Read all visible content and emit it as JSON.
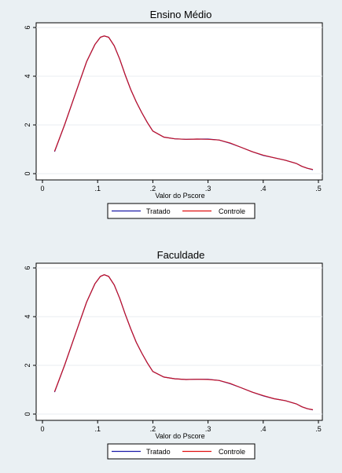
{
  "chart_data": [
    {
      "type": "line",
      "title": "Ensino Médio",
      "xlabel": "Valor do Pscore",
      "ylabel": "",
      "xlim": [
        0,
        0.5
      ],
      "ylim": [
        0,
        6
      ],
      "xticks": [
        0,
        0.1,
        0.2,
        0.3,
        0.4,
        0.5
      ],
      "xtick_labels": [
        "0",
        ".1",
        ".2",
        ".3",
        ".4",
        ".5"
      ],
      "yticks": [
        0,
        2,
        4,
        6
      ],
      "ytick_labels": [
        "0",
        "2",
        "4",
        "6"
      ],
      "grid": true,
      "legend": "bottom",
      "series": [
        {
          "name": "Tratado",
          "color": "#1a1aa8",
          "x": [
            0.022,
            0.04,
            0.06,
            0.08,
            0.095,
            0.105,
            0.112,
            0.12,
            0.13,
            0.14,
            0.15,
            0.16,
            0.17,
            0.18,
            0.19,
            0.2,
            0.22,
            0.24,
            0.26,
            0.28,
            0.3,
            0.32,
            0.34,
            0.36,
            0.38,
            0.4,
            0.42,
            0.44,
            0.46,
            0.47,
            0.48,
            0.49
          ],
          "y": [
            0.9,
            2.0,
            3.3,
            4.6,
            5.3,
            5.6,
            5.65,
            5.6,
            5.25,
            4.7,
            4.05,
            3.45,
            2.95,
            2.5,
            2.1,
            1.75,
            1.5,
            1.43,
            1.41,
            1.42,
            1.42,
            1.38,
            1.25,
            1.08,
            0.9,
            0.75,
            0.65,
            0.55,
            0.42,
            0.3,
            0.22,
            0.16
          ]
        },
        {
          "name": "Controle",
          "color": "#e01010",
          "x": [
            0.022,
            0.04,
            0.06,
            0.08,
            0.095,
            0.105,
            0.112,
            0.12,
            0.13,
            0.14,
            0.15,
            0.16,
            0.17,
            0.18,
            0.19,
            0.2,
            0.22,
            0.24,
            0.26,
            0.28,
            0.3,
            0.32,
            0.34,
            0.36,
            0.38,
            0.4,
            0.42,
            0.44,
            0.46,
            0.47,
            0.48,
            0.49
          ],
          "y": [
            0.92,
            2.0,
            3.3,
            4.6,
            5.3,
            5.6,
            5.65,
            5.6,
            5.25,
            4.7,
            4.05,
            3.45,
            2.95,
            2.5,
            2.1,
            1.75,
            1.5,
            1.43,
            1.41,
            1.42,
            1.41,
            1.38,
            1.26,
            1.08,
            0.9,
            0.76,
            0.65,
            0.55,
            0.42,
            0.3,
            0.22,
            0.17
          ]
        }
      ]
    },
    {
      "type": "line",
      "title": "Faculdade",
      "xlabel": "Valor do Pscore",
      "ylabel": "",
      "xlim": [
        0,
        0.5
      ],
      "ylim": [
        0,
        6
      ],
      "xticks": [
        0,
        0.1,
        0.2,
        0.3,
        0.4,
        0.5
      ],
      "xtick_labels": [
        "0",
        ".1",
        ".2",
        ".3",
        ".4",
        ".5"
      ],
      "yticks": [
        0,
        2,
        4,
        6
      ],
      "ytick_labels": [
        "0",
        "2",
        "4",
        "6"
      ],
      "grid": true,
      "legend": "bottom",
      "series": [
        {
          "name": "Tratado",
          "color": "#1a1aa8",
          "x": [
            0.022,
            0.04,
            0.06,
            0.08,
            0.095,
            0.105,
            0.112,
            0.12,
            0.13,
            0.14,
            0.15,
            0.16,
            0.17,
            0.18,
            0.19,
            0.2,
            0.22,
            0.24,
            0.26,
            0.28,
            0.3,
            0.32,
            0.34,
            0.36,
            0.38,
            0.4,
            0.42,
            0.44,
            0.46,
            0.47,
            0.48,
            0.49
          ],
          "y": [
            0.9,
            2.0,
            3.3,
            4.6,
            5.35,
            5.65,
            5.72,
            5.65,
            5.3,
            4.75,
            4.1,
            3.5,
            2.95,
            2.5,
            2.1,
            1.75,
            1.52,
            1.45,
            1.42,
            1.43,
            1.43,
            1.38,
            1.25,
            1.08,
            0.9,
            0.75,
            0.63,
            0.55,
            0.42,
            0.3,
            0.22,
            0.17
          ]
        },
        {
          "name": "Controle",
          "color": "#e01010",
          "x": [
            0.022,
            0.04,
            0.06,
            0.08,
            0.095,
            0.105,
            0.112,
            0.12,
            0.13,
            0.14,
            0.15,
            0.16,
            0.17,
            0.18,
            0.19,
            0.2,
            0.22,
            0.24,
            0.26,
            0.28,
            0.3,
            0.32,
            0.34,
            0.36,
            0.38,
            0.4,
            0.42,
            0.44,
            0.46,
            0.47,
            0.48,
            0.49
          ],
          "y": [
            0.92,
            2.0,
            3.3,
            4.6,
            5.35,
            5.65,
            5.72,
            5.65,
            5.3,
            4.75,
            4.1,
            3.5,
            2.95,
            2.5,
            2.1,
            1.75,
            1.52,
            1.45,
            1.42,
            1.43,
            1.42,
            1.38,
            1.26,
            1.08,
            0.9,
            0.76,
            0.63,
            0.55,
            0.42,
            0.3,
            0.22,
            0.18
          ]
        }
      ]
    }
  ]
}
